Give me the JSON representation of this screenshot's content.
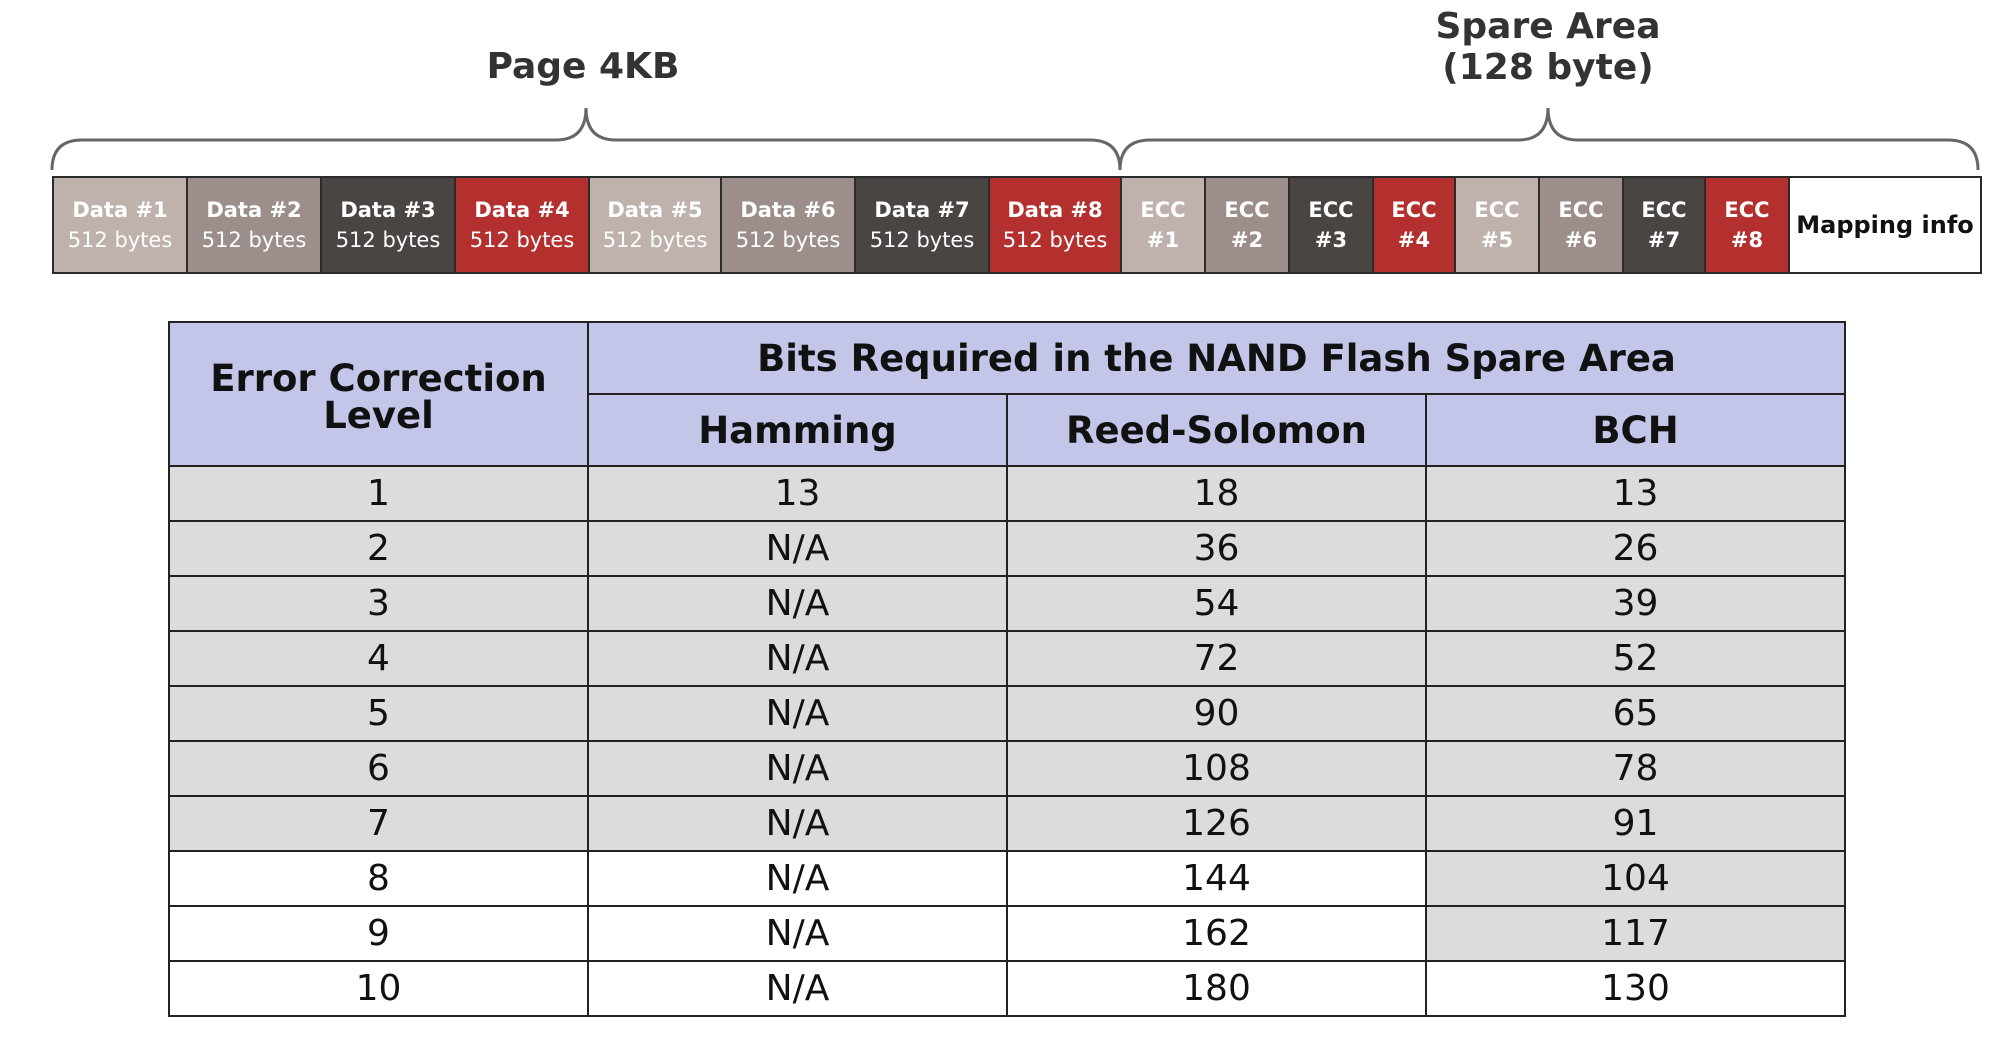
{
  "diagram": {
    "page_label": "Page 4KB",
    "spare_label_line1": "Spare Area",
    "spare_label_line2": "(128 byte)",
    "blocks": [
      {
        "line1": "Data #1",
        "line2": "512 bytes",
        "color": "#bfb2ad"
      },
      {
        "line1": "Data #2",
        "line2": "512 bytes",
        "color": "#9c8f8b"
      },
      {
        "line1": "Data #3",
        "line2": "512 bytes",
        "color": "#4a4443"
      },
      {
        "line1": "Data #4",
        "line2": "512 bytes",
        "color": "#b3302f"
      },
      {
        "line1": "Data #5",
        "line2": "512 bytes",
        "color": "#bfb2ad"
      },
      {
        "line1": "Data #6",
        "line2": "512 bytes",
        "color": "#9c8f8b"
      },
      {
        "line1": "Data #7",
        "line2": "512 bytes",
        "color": "#4a4443"
      },
      {
        "line1": "Data #8",
        "line2": "512 bytes",
        "color": "#b3302f"
      },
      {
        "line1": "ECC",
        "line2": "#1",
        "color": "#bfb2ad"
      },
      {
        "line1": "ECC",
        "line2": "#2",
        "color": "#9c8f8b"
      },
      {
        "line1": "ECC",
        "line2": "#3",
        "color": "#4a4443"
      },
      {
        "line1": "ECC",
        "line2": "#4",
        "color": "#b3302f"
      },
      {
        "line1": "ECC",
        "line2": "#5",
        "color": "#bfb2ad"
      },
      {
        "line1": "ECC",
        "line2": "#6",
        "color": "#9c8f8b"
      },
      {
        "line1": "ECC",
        "line2": "#7",
        "color": "#4a4443"
      },
      {
        "line1": "ECC",
        "line2": "#8",
        "color": "#b3302f"
      },
      {
        "line1": "Mapping info",
        "line2": "",
        "color": "#ffffff"
      }
    ]
  },
  "table": {
    "corner_line1": "Error Correction",
    "corner_line2": "Level",
    "group_header": "Bits Required in the NAND Flash Spare Area",
    "columns": [
      "Hamming",
      "Reed-Solomon",
      "BCH"
    ],
    "rows": [
      {
        "level": "1",
        "hamming": "13",
        "reed_solomon": "18",
        "bch": "13"
      },
      {
        "level": "2",
        "hamming": "N/A",
        "reed_solomon": "36",
        "bch": "26"
      },
      {
        "level": "3",
        "hamming": "N/A",
        "reed_solomon": "54",
        "bch": "39"
      },
      {
        "level": "4",
        "hamming": "N/A",
        "reed_solomon": "72",
        "bch": "52"
      },
      {
        "level": "5",
        "hamming": "N/A",
        "reed_solomon": "90",
        "bch": "65"
      },
      {
        "level": "6",
        "hamming": "N/A",
        "reed_solomon": "108",
        "bch": "78"
      },
      {
        "level": "7",
        "hamming": "N/A",
        "reed_solomon": "126",
        "bch": "91"
      },
      {
        "level": "8",
        "hamming": "N/A",
        "reed_solomon": "144",
        "bch": "104"
      },
      {
        "level": "9",
        "hamming": "N/A",
        "reed_solomon": "162",
        "bch": "117"
      },
      {
        "level": "10",
        "hamming": "N/A",
        "reed_solomon": "180",
        "bch": "130"
      }
    ],
    "header_color": "#c3c6e8",
    "shade_color": "#dcdcdc"
  }
}
